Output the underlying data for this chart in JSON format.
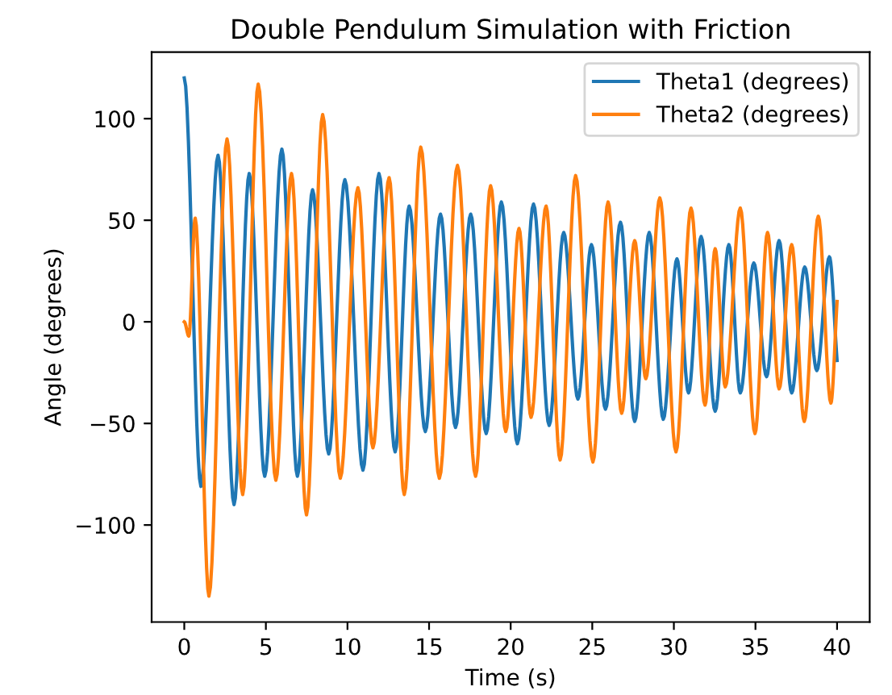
{
  "chart_data": {
    "type": "line",
    "title": "Double Pendulum Simulation with Friction",
    "xlabel": "Time (s)",
    "ylabel": "Angle (degrees)",
    "xlim": [
      -2,
      42
    ],
    "ylim": [
      -147.75,
      132.75
    ],
    "xticks": [
      0,
      5,
      10,
      15,
      20,
      25,
      30,
      35,
      40
    ],
    "yticks": [
      -100,
      -50,
      0,
      50,
      100
    ],
    "legend": "top right",
    "grid": false,
    "marker": "none",
    "line_style": "solid",
    "series": [
      {
        "name": "Theta1 (degrees)",
        "color": "#1f77b4",
        "x": [
          0,
          1.02,
          2.07,
          3.05,
          3.98,
          4.93,
          5.98,
          6.93,
          7.86,
          8.85,
          9.84,
          10.95,
          11.93,
          12.92,
          13.78,
          14.77,
          15.7,
          16.62,
          17.55,
          18.5,
          19.43,
          20.41,
          21.4,
          22.36,
          23.25,
          24.12,
          24.95,
          25.81,
          26.73,
          27.6,
          28.49,
          29.35,
          30.19,
          30.9,
          31.67,
          32.53,
          33.37,
          34.07,
          34.9,
          35.68,
          36.45,
          37.22,
          38.02,
          38.76,
          39.53,
          40
        ],
        "values": [
          120,
          -81,
          82,
          -90,
          73,
          -76,
          85,
          -76,
          65,
          -65,
          70,
          -73,
          73,
          -64,
          57,
          -54,
          53,
          -52,
          53,
          -55,
          59,
          -60,
          58,
          -51,
          44,
          -38,
          38,
          -43,
          49,
          -49,
          44,
          -48,
          31,
          -35,
          42,
          -44,
          38,
          -35,
          29,
          -27,
          40,
          -35,
          27,
          -24,
          32,
          -19
        ]
      },
      {
        "name": "Theta2 (degrees)",
        "color": "#ff7f0e",
        "x": [
          0,
          0.28,
          0.67,
          1.51,
          2.62,
          3.58,
          4.53,
          5.61,
          6.57,
          7.49,
          8.48,
          9.56,
          10.64,
          11.56,
          12.55,
          13.48,
          14.49,
          15.63,
          16.74,
          17.85,
          18.77,
          19.7,
          20.51,
          21.25,
          22.17,
          23.03,
          23.98,
          25.04,
          25.97,
          26.8,
          27.6,
          28.28,
          29.14,
          30.13,
          31.05,
          31.91,
          32.53,
          33.15,
          34.07,
          34.97,
          35.74,
          36.45,
          37.22,
          37.99,
          38.85,
          39.62,
          40
        ],
        "values": [
          0,
          -7,
          51,
          -135,
          90,
          -85,
          117,
          -78,
          73,
          -95,
          102,
          -77,
          66,
          -62,
          71,
          -85,
          86,
          -77,
          77,
          -76,
          67,
          -54,
          46,
          -47,
          57,
          -68,
          72,
          -69,
          59,
          -45,
          40,
          -28,
          61,
          -64,
          56,
          -41,
          36,
          -32,
          56,
          -55,
          44,
          -33,
          38,
          -49,
          52,
          -40,
          10
        ]
      }
    ]
  }
}
